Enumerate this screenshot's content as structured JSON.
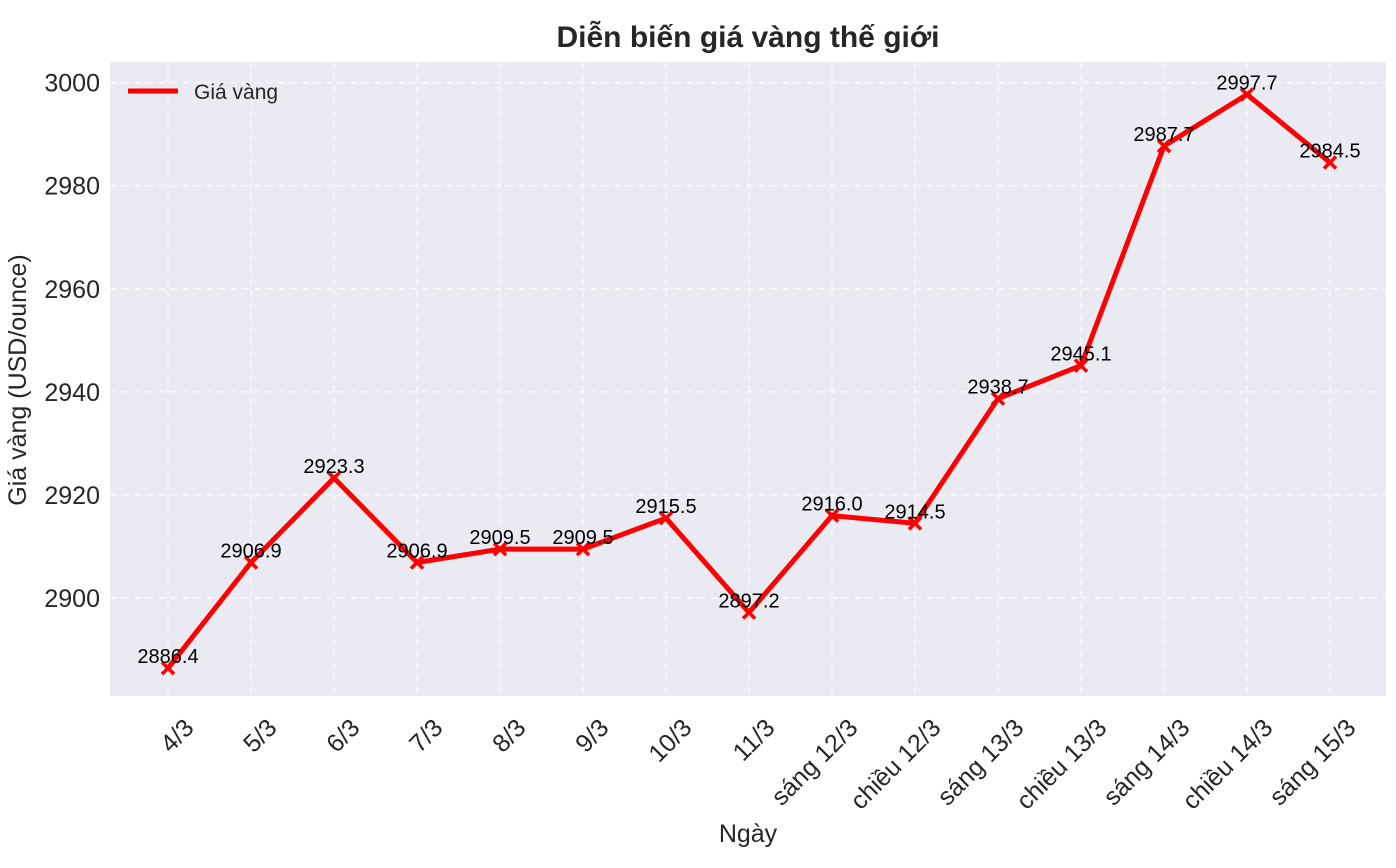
{
  "chart_data": {
    "type": "line",
    "title": "Diễn biến giá vàng thế giới",
    "xlabel": "Ngày",
    "ylabel": "Giá vàng (USD/ounce)",
    "categories": [
      "4/3",
      "5/3",
      "6/3",
      "7/3",
      "8/3",
      "9/3",
      "10/3",
      "11/3",
      "sáng 12/3",
      "chiều 12/3",
      "sáng 13/3",
      "chiều 13/3",
      "sáng 14/3",
      "chiều 14/3",
      "sáng 15/3"
    ],
    "series": [
      {
        "name": "Giá vàng",
        "values": [
          2886.4,
          2906.9,
          2923.3,
          2906.9,
          2909.5,
          2909.5,
          2915.5,
          2897.2,
          2916.0,
          2914.5,
          2938.7,
          2945.1,
          2987.7,
          2997.7,
          2984.5
        ],
        "color": "#ff0000",
        "marker": "x"
      }
    ],
    "data_labels": [
      "2886.4",
      "2906.9",
      "2923.3",
      "2906.9",
      "2909.5",
      "2909.5",
      "2915.5",
      "2897.2",
      "2916.0",
      "2914.5",
      "2938.7",
      "2945.1",
      "2987.7",
      "2997.7",
      "2984.5"
    ],
    "ylim": [
      2881,
      3004
    ],
    "yticks": [
      2900,
      2920,
      2940,
      2960,
      2980,
      3000
    ],
    "grid": true,
    "legend_position": "top-left",
    "plot_background": "#eaeaf2",
    "grid_color": "#ffffff"
  }
}
